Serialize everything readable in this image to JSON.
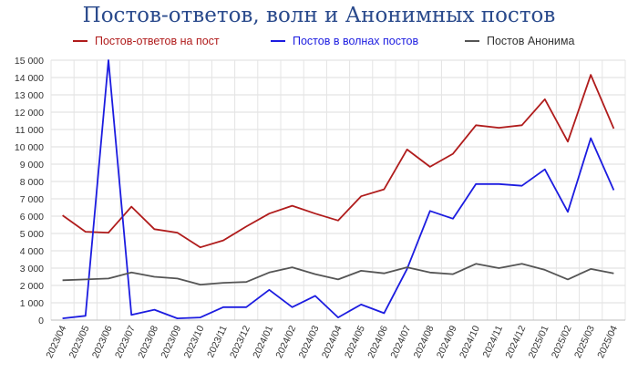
{
  "chart_data": {
    "type": "line",
    "title": "Постов-ответов, волн и Анонимных постов",
    "xlabel": "",
    "ylabel": "",
    "ylim": [
      0,
      15000
    ],
    "yticks": [
      0,
      1000,
      2000,
      3000,
      4000,
      5000,
      6000,
      7000,
      8000,
      9000,
      10000,
      11000,
      12000,
      13000,
      14000,
      15000
    ],
    "ytick_labels": [
      "0",
      "1 000",
      "2 000",
      "3 000",
      "4 000",
      "5 000",
      "6 000",
      "7 000",
      "8 000",
      "9 000",
      "10 000",
      "11 000",
      "12 000",
      "13 000",
      "14 000",
      "15 000"
    ],
    "grid": true,
    "legend_position": "top",
    "categories": [
      "2023/04",
      "2023/05",
      "2023/06",
      "2023/07",
      "2023/08",
      "2023/09",
      "2023/10",
      "2023/11",
      "2023/12",
      "2024/01",
      "2024/02",
      "2024/03",
      "2024/04",
      "2024/05",
      "2024/06",
      "2024/07",
      "2024/08",
      "2024/09",
      "2024/10",
      "2024/11",
      "2024/12",
      "2025/01",
      "2025/02",
      "2025/03",
      "2025/04"
    ],
    "series": [
      {
        "name": "Постов-ответов на пост",
        "color": "#b01c1c",
        "values": [
          6050,
          5100,
          5050,
          6550,
          5250,
          5050,
          4200,
          4600,
          5400,
          6150,
          6600,
          6150,
          5750,
          7150,
          7550,
          9850,
          8850,
          9600,
          11250,
          11100,
          11250,
          12750,
          10300,
          14150,
          11050
        ]
      },
      {
        "name": "Постов в волнах постов",
        "color": "#1c1ce0",
        "values": [
          100,
          250,
          15000,
          300,
          600,
          100,
          150,
          750,
          750,
          1750,
          750,
          1400,
          150,
          900,
          400,
          2950,
          6300,
          5850,
          7850,
          7850,
          7750,
          8700,
          6250,
          10500,
          7500
        ]
      },
      {
        "name": "Постов Анонима",
        "color": "#555555",
        "values": [
          2300,
          2350,
          2400,
          2750,
          2500,
          2400,
          2050,
          2150,
          2200,
          2750,
          3050,
          2650,
          2350,
          2850,
          2700,
          3050,
          2750,
          2650,
          3250,
          3000,
          3250,
          2900,
          2350,
          2950,
          2700
        ]
      }
    ]
  }
}
